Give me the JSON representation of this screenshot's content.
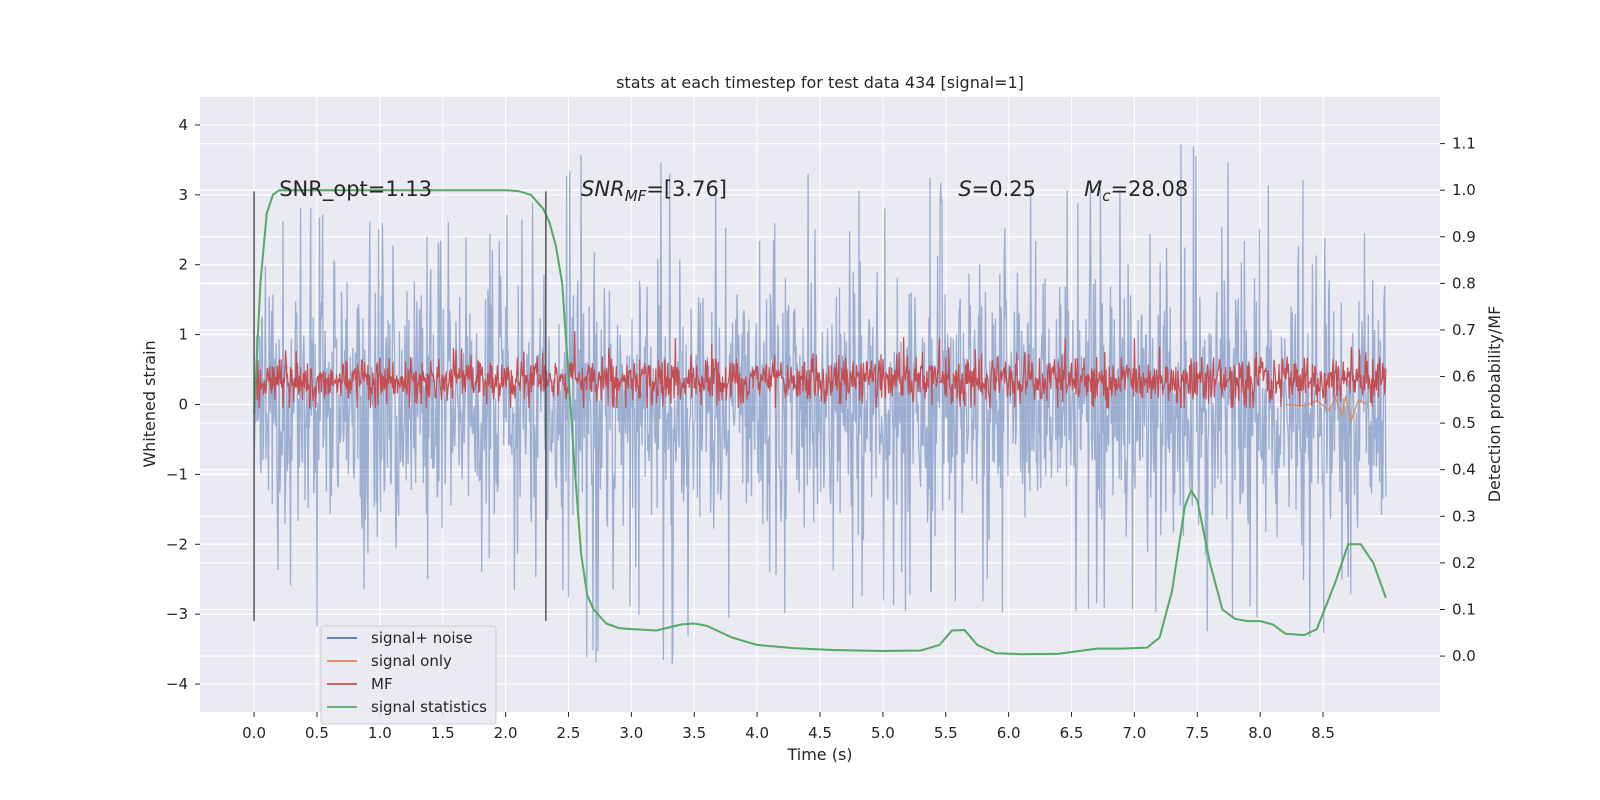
{
  "chart_data": {
    "type": "line",
    "title": "stats at each timestep for test data 434 [signal=1]",
    "xlabel": "Time (s)",
    "ylabel": "Whitened strain",
    "y2label": "Detection probability/MF",
    "xlim": [
      -0.43,
      9.43
    ],
    "ylim": [
      -4.4,
      4.4
    ],
    "y2lim": [
      -0.12,
      1.2
    ],
    "x_ticks": [
      0.0,
      0.5,
      1.0,
      1.5,
      2.0,
      2.5,
      3.0,
      3.5,
      4.0,
      4.5,
      5.0,
      5.5,
      6.0,
      6.5,
      7.0,
      7.5,
      8.0,
      8.5
    ],
    "x_tick_labels": [
      "0.0",
      "0.5",
      "1.0",
      "1.5",
      "2.0",
      "2.5",
      "3.0",
      "3.5",
      "4.0",
      "4.5",
      "5.0",
      "5.5",
      "6.0",
      "6.5",
      "7.0",
      "7.5",
      "8.0",
      "8.5"
    ],
    "y_ticks": [
      -4,
      -3,
      -2,
      -1,
      0,
      1,
      2,
      3,
      4
    ],
    "y_tick_labels": [
      "−4",
      "−3",
      "−2",
      "−1",
      "0",
      "1",
      "2",
      "3",
      "4"
    ],
    "y2_ticks": [
      0.0,
      0.1,
      0.2,
      0.3,
      0.4,
      0.5,
      0.6,
      0.7,
      0.8,
      0.9,
      1.0,
      1.1
    ],
    "y2_tick_labels": [
      "0.0",
      "0.1",
      "0.2",
      "0.3",
      "0.4",
      "0.5",
      "0.6",
      "0.7",
      "0.8",
      "0.9",
      "1.0",
      "1.1"
    ],
    "grid": true,
    "legend_position": "lower-left",
    "series": [
      {
        "name": "signal+ noise",
        "color": "#4c72b0",
        "axis": "left",
        "x_range": [
          0.0,
          9.0
        ],
        "envelope_upper": [
          [
            0.0,
            1.8
          ],
          [
            0.3,
            3.0
          ],
          [
            0.6,
            2.7
          ],
          [
            1.0,
            2.6
          ],
          [
            1.5,
            2.6
          ],
          [
            2.0,
            2.7
          ],
          [
            2.5,
            3.3
          ],
          [
            2.55,
            3.8
          ],
          [
            3.0,
            3.2
          ],
          [
            3.5,
            3.9
          ],
          [
            4.0,
            3.0
          ],
          [
            4.5,
            3.5
          ],
          [
            5.0,
            3.1
          ],
          [
            5.5,
            3.3
          ],
          [
            6.0,
            3.3
          ],
          [
            6.5,
            3.2
          ],
          [
            7.0,
            3.4
          ],
          [
            7.4,
            3.9
          ],
          [
            8.0,
            3.4
          ],
          [
            8.5,
            3.2
          ],
          [
            9.0,
            2.2
          ]
        ],
        "envelope_lower": [
          [
            0.0,
            -2.3
          ],
          [
            0.3,
            -3.0
          ],
          [
            0.4,
            -3.5
          ],
          [
            1.0,
            -2.8
          ],
          [
            1.5,
            -2.9
          ],
          [
            2.0,
            -2.6
          ],
          [
            2.5,
            -3.0
          ],
          [
            2.7,
            -4.0
          ],
          [
            3.0,
            -3.3
          ],
          [
            3.2,
            -3.9
          ],
          [
            3.7,
            -3.7
          ],
          [
            4.0,
            -3.2
          ],
          [
            4.5,
            -3.2
          ],
          [
            5.0,
            -3.2
          ],
          [
            5.5,
            -3.0
          ],
          [
            6.0,
            -3.2
          ],
          [
            6.5,
            -3.2
          ],
          [
            6.8,
            -3.4
          ],
          [
            7.5,
            -3.3
          ],
          [
            8.0,
            -3.2
          ],
          [
            8.6,
            -3.4
          ],
          [
            9.0,
            -2.0
          ]
        ]
      },
      {
        "name": "signal only",
        "color": "#dd8452",
        "axis": "left",
        "x": [
          8.2,
          8.35,
          8.45,
          8.55,
          8.6,
          8.65,
          8.68,
          8.72,
          8.78,
          8.85
        ],
        "y": [
          0.0,
          -0.02,
          0.05,
          -0.08,
          0.1,
          -0.15,
          0.12,
          -0.25,
          0.06,
          0.0
        ]
      },
      {
        "name": "MF",
        "color": "#c44e52",
        "axis": "left",
        "x_range": [
          0.0,
          9.0
        ],
        "typical_range": [
          -0.05,
          0.75
        ],
        "peaks": [
          [
            2.55,
            1.05
          ],
          [
            3.35,
            0.95
          ],
          [
            5.45,
            0.95
          ],
          [
            6.45,
            0.95
          ],
          [
            7.0,
            0.95
          ]
        ]
      },
      {
        "name": "signal statistics",
        "color": "#55a868",
        "axis": "right",
        "x": [
          0.0,
          0.05,
          0.1,
          0.15,
          0.2,
          0.3,
          0.5,
          1.0,
          1.5,
          2.0,
          2.1,
          2.2,
          2.3,
          2.35,
          2.4,
          2.45,
          2.5,
          2.55,
          2.6,
          2.65,
          2.7,
          2.8,
          2.9,
          3.0,
          3.2,
          3.4,
          3.5,
          3.6,
          3.8,
          4.0,
          4.3,
          4.6,
          5.0,
          5.3,
          5.45,
          5.55,
          5.65,
          5.75,
          5.9,
          6.1,
          6.4,
          6.7,
          6.9,
          7.1,
          7.2,
          7.3,
          7.4,
          7.45,
          7.5,
          7.6,
          7.7,
          7.8,
          7.9,
          8.0,
          8.1,
          8.2,
          8.35,
          8.45,
          8.6,
          8.7,
          8.8,
          8.9,
          9.0
        ],
        "y": [
          0.52,
          0.8,
          0.95,
          0.99,
          1.0,
          1.0,
          1.0,
          1.0,
          1.0,
          1.0,
          0.998,
          0.99,
          0.96,
          0.93,
          0.88,
          0.8,
          0.6,
          0.4,
          0.22,
          0.13,
          0.1,
          0.07,
          0.06,
          0.058,
          0.055,
          0.068,
          0.07,
          0.065,
          0.04,
          0.024,
          0.017,
          0.013,
          0.011,
          0.012,
          0.024,
          0.055,
          0.056,
          0.024,
          0.006,
          0.004,
          0.005,
          0.016,
          0.016,
          0.018,
          0.04,
          0.14,
          0.32,
          0.355,
          0.335,
          0.2,
          0.1,
          0.08,
          0.075,
          0.075,
          0.068,
          0.048,
          0.045,
          0.058,
          0.16,
          0.24,
          0.24,
          0.2,
          0.125
        ]
      }
    ],
    "vertical_lines": [
      {
        "x": 0.0,
        "y_min": -3.1,
        "y_max": 3.05
      },
      {
        "x": 2.32,
        "y_min": -3.1,
        "y_max": 3.05
      }
    ],
    "annotations": [
      {
        "x": 0.2,
        "y": 3.0,
        "parts": [
          {
            "t": "SNR_opt=1.13",
            "i": false
          }
        ]
      },
      {
        "x": 2.6,
        "y": 3.0,
        "parts": [
          {
            "t": "SNR",
            "i": true
          },
          {
            "t": "MF",
            "i": true,
            "sub": true
          },
          {
            "t": "=[3.76]",
            "i": false
          }
        ]
      },
      {
        "x": 5.6,
        "y": 3.0,
        "parts": [
          {
            "t": "S",
            "i": true
          },
          {
            "t": "=0.25",
            "i": false
          }
        ]
      },
      {
        "x": 6.6,
        "y": 3.0,
        "parts": [
          {
            "t": "M",
            "i": true
          },
          {
            "t": "c",
            "i": true,
            "sub": true
          },
          {
            "t": "=28.08",
            "i": false
          }
        ]
      }
    ]
  }
}
